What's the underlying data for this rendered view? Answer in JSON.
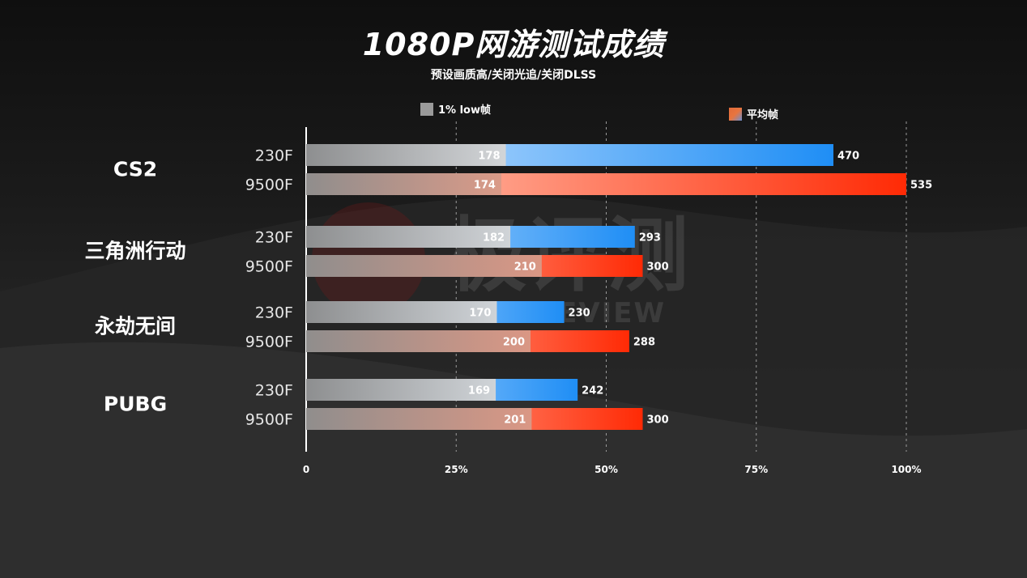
{
  "title": "1080P网游测试成绩",
  "subtitle": "预设画质高/关闭光追/关闭DLSS",
  "legend": {
    "low": "1% low帧",
    "avg": "平均帧"
  },
  "watermark": {
    "cn": "极评测",
    "en": "RTE REVIEW"
  },
  "colors": {
    "blue": "#1f8ef5",
    "red": "#ff2a05",
    "gray": "#b7b7b7"
  },
  "chart_data": {
    "type": "bar",
    "orientation": "horizontal",
    "x_max": 535,
    "x_ticks": [
      "0",
      "25%",
      "50%",
      "75%",
      "100%"
    ],
    "grid": "vertical-dashed",
    "legend_placement": "top",
    "games": [
      {
        "name": "CS2",
        "rows": [
          {
            "cpu": "230F",
            "low": 178,
            "avg": 470,
            "color": "blue"
          },
          {
            "cpu": "9500F",
            "low": 174,
            "avg": 535,
            "color": "red"
          }
        ]
      },
      {
        "name": "三角洲行动",
        "rows": [
          {
            "cpu": "230F",
            "low": 182,
            "avg": 293,
            "color": "blue"
          },
          {
            "cpu": "9500F",
            "low": 210,
            "avg": 300,
            "color": "red"
          }
        ]
      },
      {
        "name": "永劫无间",
        "rows": [
          {
            "cpu": "230F",
            "low": 170,
            "avg": 230,
            "color": "blue"
          },
          {
            "cpu": "9500F",
            "low": 200,
            "avg": 288,
            "color": "red"
          }
        ]
      },
      {
        "name": "PUBG",
        "rows": [
          {
            "cpu": "230F",
            "low": 169,
            "avg": 242,
            "color": "blue"
          },
          {
            "cpu": "9500F",
            "low": 201,
            "avg": 300,
            "color": "red"
          }
        ]
      }
    ]
  }
}
